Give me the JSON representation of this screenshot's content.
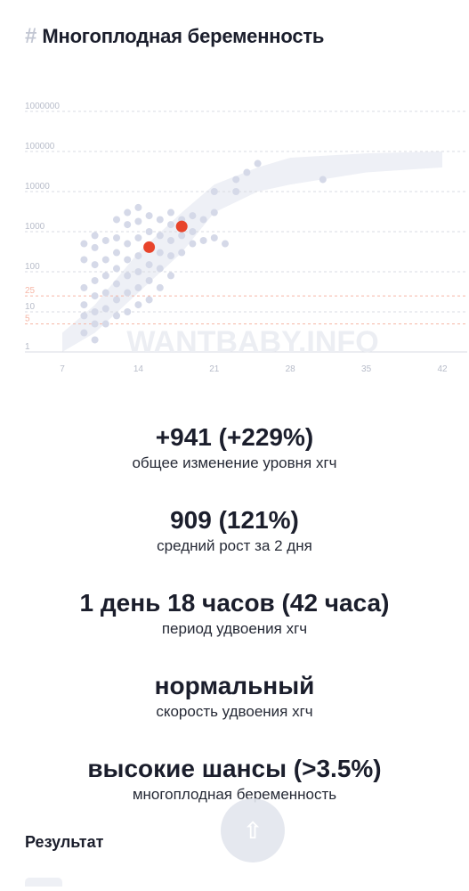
{
  "header": {
    "hash": "#",
    "title": "Многоплодная беременность"
  },
  "chart_data": {
    "type": "scatter",
    "y_scale": "log",
    "y_ticks": [
      {
        "value": 1000000,
        "label": "1000000"
      },
      {
        "value": 100000,
        "label": "100000"
      },
      {
        "value": 10000,
        "label": "10000"
      },
      {
        "value": 1000,
        "label": "1000"
      },
      {
        "value": 100,
        "label": "100"
      },
      {
        "value": 25,
        "label": "25"
      },
      {
        "value": 10,
        "label": "10"
      },
      {
        "value": 5,
        "label": "5"
      },
      {
        "value": 1,
        "label": "1"
      }
    ],
    "x_ticks": [
      7,
      14,
      21,
      28,
      35,
      42
    ],
    "xlim": [
      7,
      42
    ],
    "ylim": [
      1,
      1000000
    ],
    "watermark": "WANTBABY.INFO",
    "band": {
      "x": [
        7,
        10,
        14,
        18,
        21,
        25,
        28,
        35,
        42
      ],
      "low": [
        1,
        3,
        30,
        300,
        3000,
        10000,
        15000,
        30000,
        40000
      ],
      "high": [
        3,
        15,
        300,
        3000,
        15000,
        40000,
        70000,
        90000,
        100000
      ]
    },
    "reference_points": [
      {
        "x": 9,
        "y": 3
      },
      {
        "x": 9,
        "y": 8
      },
      {
        "x": 9,
        "y": 15
      },
      {
        "x": 9,
        "y": 40
      },
      {
        "x": 9,
        "y": 200
      },
      {
        "x": 9,
        "y": 500
      },
      {
        "x": 10,
        "y": 2
      },
      {
        "x": 10,
        "y": 5
      },
      {
        "x": 10,
        "y": 10
      },
      {
        "x": 10,
        "y": 25
      },
      {
        "x": 10,
        "y": 60
      },
      {
        "x": 10,
        "y": 150
      },
      {
        "x": 10,
        "y": 400
      },
      {
        "x": 10,
        "y": 800
      },
      {
        "x": 11,
        "y": 5
      },
      {
        "x": 11,
        "y": 12
      },
      {
        "x": 11,
        "y": 30
      },
      {
        "x": 11,
        "y": 80
      },
      {
        "x": 11,
        "y": 200
      },
      {
        "x": 11,
        "y": 600
      },
      {
        "x": 12,
        "y": 8
      },
      {
        "x": 12,
        "y": 20
      },
      {
        "x": 12,
        "y": 50
      },
      {
        "x": 12,
        "y": 120
      },
      {
        "x": 12,
        "y": 300
      },
      {
        "x": 12,
        "y": 700
      },
      {
        "x": 12,
        "y": 2000
      },
      {
        "x": 13,
        "y": 10
      },
      {
        "x": 13,
        "y": 30
      },
      {
        "x": 13,
        "y": 80
      },
      {
        "x": 13,
        "y": 200
      },
      {
        "x": 13,
        "y": 500
      },
      {
        "x": 13,
        "y": 1500
      },
      {
        "x": 13,
        "y": 3000
      },
      {
        "x": 14,
        "y": 15
      },
      {
        "x": 14,
        "y": 40
      },
      {
        "x": 14,
        "y": 100
      },
      {
        "x": 14,
        "y": 250
      },
      {
        "x": 14,
        "y": 700
      },
      {
        "x": 14,
        "y": 1800
      },
      {
        "x": 14,
        "y": 4000
      },
      {
        "x": 15,
        "y": 20
      },
      {
        "x": 15,
        "y": 60
      },
      {
        "x": 15,
        "y": 150
      },
      {
        "x": 15,
        "y": 400
      },
      {
        "x": 15,
        "y": 1000
      },
      {
        "x": 15,
        "y": 2500
      },
      {
        "x": 16,
        "y": 40
      },
      {
        "x": 16,
        "y": 120
      },
      {
        "x": 16,
        "y": 300
      },
      {
        "x": 16,
        "y": 800
      },
      {
        "x": 16,
        "y": 2000
      },
      {
        "x": 17,
        "y": 80
      },
      {
        "x": 17,
        "y": 250
      },
      {
        "x": 17,
        "y": 600
      },
      {
        "x": 17,
        "y": 1500
      },
      {
        "x": 17,
        "y": 3000
      },
      {
        "x": 18,
        "y": 300
      },
      {
        "x": 18,
        "y": 800
      },
      {
        "x": 18,
        "y": 2000
      },
      {
        "x": 19,
        "y": 500
      },
      {
        "x": 19,
        "y": 1000
      },
      {
        "x": 19,
        "y": 2500
      },
      {
        "x": 20,
        "y": 600
      },
      {
        "x": 20,
        "y": 2000
      },
      {
        "x": 21,
        "y": 700
      },
      {
        "x": 21,
        "y": 3000
      },
      {
        "x": 21,
        "y": 10000
      },
      {
        "x": 22,
        "y": 500
      },
      {
        "x": 23,
        "y": 10000
      },
      {
        "x": 23,
        "y": 20000
      },
      {
        "x": 24,
        "y": 30000
      },
      {
        "x": 25,
        "y": 50000
      },
      {
        "x": 31,
        "y": 20000
      }
    ],
    "user_points": [
      {
        "x": 15,
        "y": 410
      },
      {
        "x": 18,
        "y": 1351
      }
    ],
    "colors": {
      "reference": "#d5d9e8",
      "band": "#eef0f6",
      "user": "#e8442b",
      "grid": "#d9dbe3",
      "risk_grid": "#f6b7a7",
      "tick": "#b7bcc9"
    }
  },
  "stats": [
    {
      "value": "+941 (+229%)",
      "label": "общее изменение уровня хгч"
    },
    {
      "value": "909 (121%)",
      "label": "средний рост за 2 дня"
    },
    {
      "value": "1 день 18 часов (42 часа)",
      "label": "период удвоения хгч"
    },
    {
      "value": "нормальный",
      "label": "скорость удвоения хгч"
    },
    {
      "value": "высокие шансы (>3.5%)",
      "label": "многоплодная беременность"
    }
  ],
  "result": {
    "heading": "Результат"
  },
  "scroll_top": {
    "icon": "arrow-up-icon",
    "glyph": "⇧"
  }
}
